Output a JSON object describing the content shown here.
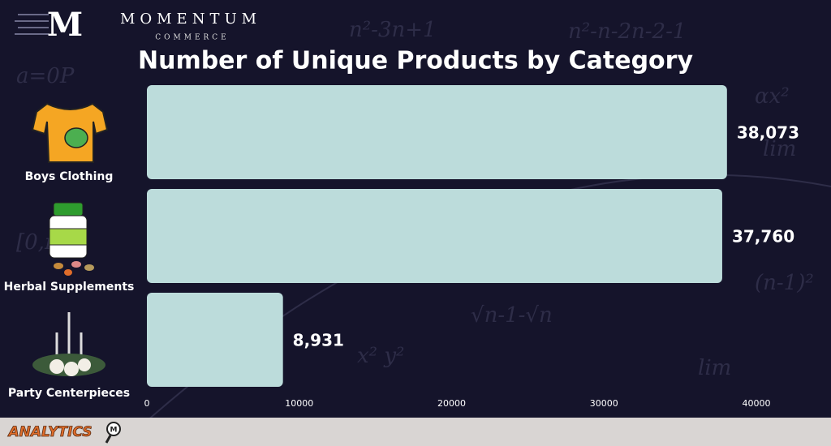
{
  "branding": {
    "monogram": "M",
    "name": "MOMENTUM",
    "tagline": "COMMERCE",
    "footer": "ANALYTICS",
    "footer_badge": "M"
  },
  "chart_data": {
    "type": "hbar",
    "title": "Number of Unique Products by Category",
    "categories": [
      "Boys Clothing",
      "Herbal Supplements",
      "Party Centerpieces"
    ],
    "values": [
      38073,
      37760,
      8931
    ],
    "value_labels": [
      "38,073",
      "37,760",
      "8,931"
    ],
    "color": "#bcdcdb",
    "xlim": [
      0,
      40000
    ],
    "xticks": [
      0,
      10000,
      20000,
      30000,
      40000
    ],
    "grid": false
  }
}
